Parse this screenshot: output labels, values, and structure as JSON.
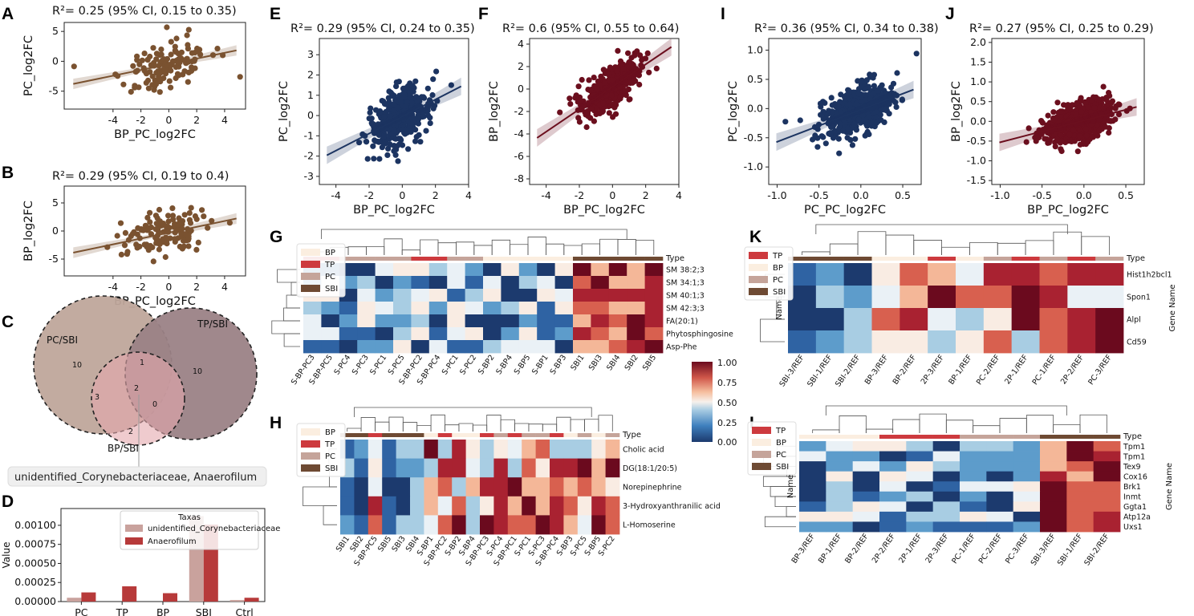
{
  "colors": {
    "brown": "#7a5230",
    "navy": "#1c3461",
    "maroon": "#6b0f1e",
    "venn_pc": "#bfa79b",
    "venn_tp": "#9b8286",
    "venn_bp": "#e4a9ad",
    "bar_light": "#c9a29d",
    "bar_dark": "#b73a3a"
  },
  "panels": {
    "A": "A",
    "B": "B",
    "C": "C",
    "D": "D",
    "E": "E",
    "F": "F",
    "G": "G",
    "H": "H",
    "I": "I",
    "J": "J",
    "K": "K",
    "L": "L"
  },
  "scatter_panels": [
    {
      "id": "A",
      "title": "R²= 0.25 (95% CI, 0.15 to 0.35)",
      "xlabel": "BP_PC_log2FC",
      "ylabel": "PC_log2FC",
      "color": "#7a5230",
      "xlim": [
        -7.5,
        5.5
      ],
      "ylim": [
        -8,
        6.5
      ],
      "xticks": [
        -4,
        -2,
        0,
        2,
        4
      ],
      "yticks": [
        -5,
        0,
        5
      ],
      "fit": {
        "slope": 0.48,
        "intercept": -0.5
      }
    },
    {
      "id": "B",
      "title": "R²= 0.29 (95% CI, 0.19 to 0.4)",
      "xlabel": "BP_PC_log2FC",
      "ylabel": "BP_log2FC",
      "color": "#7a5230",
      "xlim": [
        -7.5,
        5.5
      ],
      "ylim": [
        -8,
        8
      ],
      "xticks": [
        -4,
        -2,
        0,
        2,
        4
      ],
      "yticks": [
        -5,
        0,
        5
      ],
      "fit": {
        "slope": 0.52,
        "intercept": -0.3
      }
    },
    {
      "id": "E",
      "title": "R²= 0.29 (95% CI, 0.24 to 0.35)",
      "xlabel": "BP_PC_log2FC",
      "ylabel": "PC_log2FC",
      "color": "#1c3461",
      "xlim": [
        -5,
        4
      ],
      "ylim": [
        -3.4,
        3.8
      ],
      "xticks": [
        -4,
        -2,
        0,
        2,
        4
      ],
      "yticks": [
        -3,
        -2,
        -1,
        0,
        1,
        2,
        3
      ],
      "fit": {
        "slope": 0.42,
        "intercept": -0.05
      }
    },
    {
      "id": "F",
      "title": "R²= 0.6 (95% CI, 0.55 to 0.64)",
      "xlabel": "BP_PC_log2FC",
      "ylabel": "BP_log2FC",
      "color": "#6b0f1e",
      "xlim": [
        -5,
        4
      ],
      "ylim": [
        -8.5,
        4.5
      ],
      "xticks": [
        -4,
        -2,
        0,
        2,
        4
      ],
      "yticks": [
        -8,
        -6,
        -4,
        -2,
        0,
        2,
        4
      ],
      "fit": {
        "slope": 1.0,
        "intercept": 0.2
      }
    },
    {
      "id": "I",
      "title": "R²= 0.36 (95% CI, 0.34 to 0.38)",
      "xlabel": "PC_PC_log2FC",
      "ylabel": "PC_log2FC",
      "color": "#1c3461",
      "xlim": [
        -1.1,
        0.72
      ],
      "ylim": [
        -1.3,
        1.2
      ],
      "xticks": [
        -1.0,
        -0.5,
        0.0,
        0.5
      ],
      "yticks": [
        -1.0,
        -0.5,
        0.0,
        0.5,
        1.0
      ],
      "fit": {
        "slope": 0.55,
        "intercept": -0.02
      }
    },
    {
      "id": "J",
      "title": "R²= 0.27 (95% CI, 0.25 to 0.29)",
      "xlabel": "BP_PC_log2FC",
      "ylabel": "BP_log2FC",
      "color": "#6b0f1e",
      "xlim": [
        -1.1,
        0.72
      ],
      "ylim": [
        -1.6,
        2.1
      ],
      "xticks": [
        -1.0,
        -0.5,
        0.0,
        0.5
      ],
      "yticks": [
        -1.5,
        -1.0,
        -0.5,
        0.0,
        0.5,
        1.0,
        1.5,
        2.0
      ],
      "fit": {
        "slope": 0.55,
        "intercept": 0.02
      }
    }
  ],
  "venn": {
    "labels": {
      "pc": "PC/SBI",
      "tp": "TP/SBI",
      "bp": "BP/SBI"
    },
    "counts": {
      "pc_only": "10",
      "tp_only": "10",
      "pc_tp": "1",
      "pc_bp": "3",
      "all": "2",
      "tp_bp": "0",
      "bp_only": "2"
    },
    "callout": "unidentified_Corynebacteriaceae, Anaerofilum"
  },
  "chart_data": [
    {
      "type": "bar",
      "panel": "D",
      "legend_title": "Taxas",
      "categories": [
        "PC",
        "TP",
        "BP",
        "SBI",
        "Ctrl"
      ],
      "series": [
        {
          "name": "unidentified_Corynebacteriaceae",
          "values": [
            5e-05,
            0.0,
            0.0,
            0.00112,
            2e-05
          ]
        },
        {
          "name": "Anaerofilum",
          "values": [
            0.00012,
            0.0002,
            0.00011,
            0.00101,
            5e-05
          ]
        }
      ],
      "ylabel": "Value",
      "ylim": [
        0,
        0.00122
      ],
      "yticks": [
        "0.00000",
        "0.00025",
        "0.00050",
        "0.00075",
        "0.00100"
      ]
    }
  ],
  "legend_type": {
    "title": "Type",
    "items": [
      {
        "label": "BP",
        "color": "#fbeee0"
      },
      {
        "label": "TP",
        "color": "#cd3a3e"
      },
      {
        "label": "PC",
        "color": "#c5a49a"
      },
      {
        "label": "SBI",
        "color": "#6e4a33"
      }
    ],
    "items_tp_first": [
      {
        "label": "TP",
        "color": "#cd3a3e"
      },
      {
        "label": "BP",
        "color": "#fbeee0"
      },
      {
        "label": "PC",
        "color": "#c5a49a"
      },
      {
        "label": "SBI",
        "color": "#6e4a33"
      }
    ]
  },
  "colorbar": {
    "ticks": [
      "1.00",
      "0.75",
      "0.50",
      "0.25",
      "0.00"
    ]
  },
  "heatmaps": {
    "G": {
      "rows": [
        "SM 38:2;3",
        "SM 34:1;3",
        "SM 40:1;3",
        "SM 42:3;3",
        "FA(20:1)",
        "Phytosphingosine",
        "Asp-Phe"
      ],
      "cols": [
        "S-BP-PC3",
        "S-BP-PC5",
        "S-PC4",
        "S-PC3",
        "S-PC1",
        "S-PC5",
        "S-BP-PC2",
        "S-BP-PC4",
        "S-PC1",
        "S-PC2",
        "S-BP2",
        "S-BP4",
        "S-BP5",
        "S-BP1",
        "S-BP3",
        "SBI1",
        "SBI3",
        "SBI4",
        "SBI2",
        "SBI5"
      ],
      "type_label": "Type"
    },
    "H": {
      "rows": [
        "Cholic acid",
        "DG(18:1/20:5)",
        "Norepinephrine",
        "3-Hydroxyanthranilic acid",
        "L-Homoserine"
      ],
      "cols": [
        "SBI1",
        "SBI2",
        "S-BP-PC5",
        "SBI5",
        "SBI3",
        "SBI4",
        "S-BP1",
        "S-BP-PC2",
        "S-BP2",
        "S-BP4",
        "S-BP-PC3",
        "S-PC4",
        "S-BP-PC1",
        "S-PC1",
        "S-PC3",
        "S-BP-PC4",
        "S-BP3",
        "S-PC5",
        "S-BP5",
        "S-PC2"
      ],
      "type_label": "Type"
    },
    "K": {
      "rows": [
        "Hist1h2bcl1",
        "Spon1",
        "Alpl",
        "Cd59"
      ],
      "cols": [
        "SBI-3/REF",
        "SBI-1/REF",
        "SBI-2/REF",
        "BP-3/REF",
        "BP-2/REF",
        "2P-3/REF",
        "BP-1/REF",
        "PC-2/REF",
        "2P-1/REF",
        "PC-1/REF",
        "2P-2/REF",
        "PC-3/REF"
      ],
      "type_label": "Type",
      "gene_axis": "Gene Name",
      "row_axis": "Name"
    },
    "L": {
      "rows": [
        "Tpm1",
        "Tpm1",
        "Tex9",
        "Cox16",
        "Brk1",
        "Inmt",
        "Ggta1",
        "Atp12a",
        "Uxs1"
      ],
      "cols": [
        "BP-3/REF",
        "BP-1/REF",
        "BP-2/REF",
        "2P-2/REF",
        "2P-1/REF",
        "2P-3/REF",
        "PC-1/REF",
        "PC-2/REF",
        "PC-3/REF",
        "SBI-3/REF",
        "SBI-1/REF",
        "SBI-2/REF"
      ],
      "type_label": "Type",
      "gene_axis": "Gene Name",
      "row_axis": "Name"
    }
  }
}
